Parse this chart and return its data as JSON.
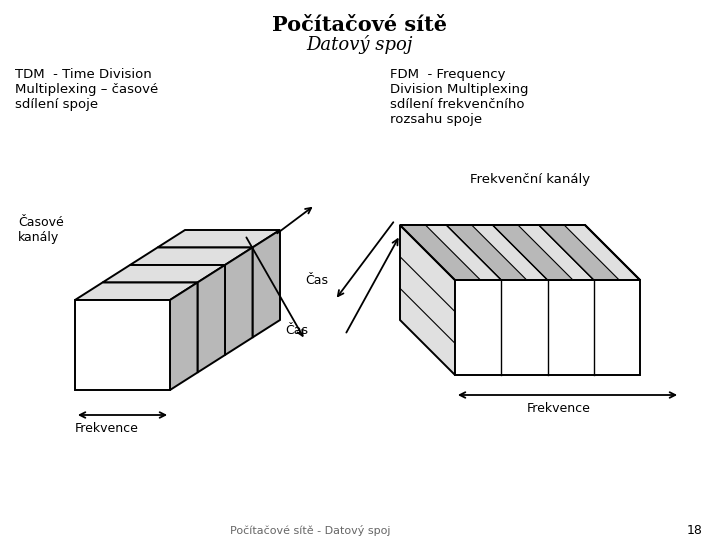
{
  "title": "Počítačové sítě",
  "subtitle": "Datový spoj",
  "tdm_text": "TDM  - Time Division\nMultiplexing – časové\nsdílení spoje",
  "fdm_text": "FDM  - Frequency\nDivision Multiplexing\nsdílení frekvenčního\nrozsahu spoje",
  "label_casove_kanaly": "Časové\nkanály",
  "label_cas_left": "Čas",
  "label_frekvence_left": "Frekvence",
  "label_frekv_kanaly": "Frekvenční kanály",
  "label_cas_right": "Čas",
  "label_frekvence_right": "Frekvence",
  "footer": "Počítačové sítě - Datový spoj",
  "page_number": "18",
  "bg_color": "#ffffff",
  "line_color": "#000000",
  "fill_white": "#ffffff",
  "fill_gray": "#b8b8b8",
  "fill_light_gray": "#e0e0e0"
}
